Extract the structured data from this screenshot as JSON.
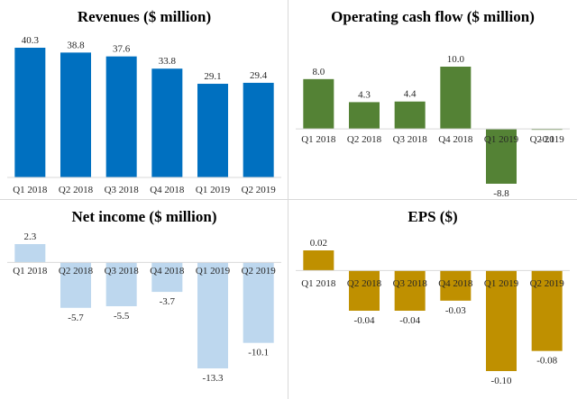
{
  "chart_data": [
    {
      "type": "bar",
      "title": "Revenues ($ million)",
      "categories": [
        "Q1 2018",
        "Q2 2018",
        "Q3 2018",
        "Q4 2018",
        "Q1 2019",
        "Q2 2019"
      ],
      "values": [
        40.3,
        38.8,
        37.6,
        33.8,
        29.1,
        29.4
      ],
      "labels": [
        "40.3",
        "38.8",
        "37.6",
        "33.8",
        "29.1",
        "29.4"
      ],
      "ylim": [
        0,
        40.3
      ],
      "color": "#0070c0",
      "grid": false,
      "legend": "none"
    },
    {
      "type": "bar",
      "title": "Operating cash flow ($ million)",
      "categories": [
        "Q1 2018",
        "Q2 2018",
        "Q3 2018",
        "Q4 2018",
        "Q1 2019",
        "Q2 2019"
      ],
      "values": [
        8.0,
        4.3,
        4.4,
        10.0,
        -8.8,
        -0.1
      ],
      "labels": [
        "8.0",
        "4.3",
        "4.4",
        "10.0",
        "-8.8",
        "-0.1"
      ],
      "ylim": [
        -8.8,
        10.0
      ],
      "color": "#548235",
      "grid": false,
      "legend": "none"
    },
    {
      "type": "bar",
      "title": "Net income ($ million)",
      "categories": [
        "Q1 2018",
        "Q2 2018",
        "Q3 2018",
        "Q4 2018",
        "Q1 2019",
        "Q2 2019"
      ],
      "values": [
        2.3,
        -5.7,
        -5.5,
        -3.7,
        -13.3,
        -10.1
      ],
      "labels": [
        "2.3",
        "-5.7",
        "-5.5",
        "-3.7",
        "-13.3",
        "-10.1"
      ],
      "ylim": [
        -13.3,
        2.3
      ],
      "color": "#bdd7ee",
      "grid": false,
      "legend": "none"
    },
    {
      "type": "bar",
      "title": "EPS ($)",
      "categories": [
        "Q1 2018",
        "Q2 2018",
        "Q3 2018",
        "Q4 2018",
        "Q1 2019",
        "Q2 2019"
      ],
      "values": [
        0.02,
        -0.04,
        -0.04,
        -0.03,
        -0.1,
        -0.08
      ],
      "labels": [
        "0.02",
        "-0.04",
        "-0.04",
        "-0.03",
        "-0.10",
        "-0.08"
      ],
      "ylim": [
        -0.1,
        0.02
      ],
      "color": "#bf9000",
      "grid": false,
      "legend": "none"
    }
  ]
}
